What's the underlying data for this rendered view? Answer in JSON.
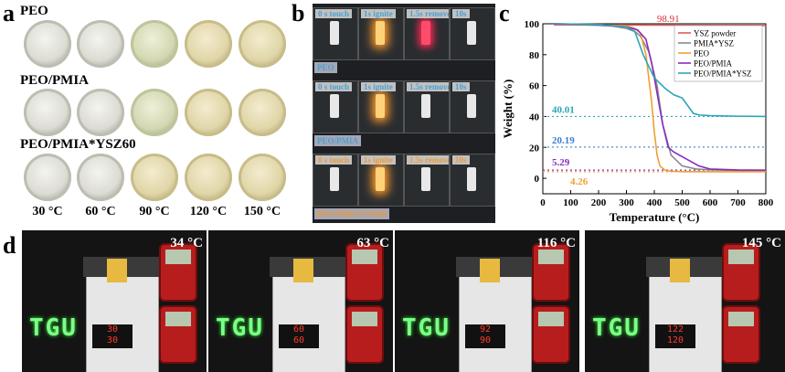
{
  "panel_a": {
    "label": "a",
    "rows": [
      "PEO",
      "PEO/PMIA",
      "PEO/PMIA*YSZ60"
    ],
    "temps": [
      "30 °C",
      "60 °C",
      "90 °C",
      "120 °C",
      "150 °C"
    ]
  },
  "panel_b": {
    "label": "b",
    "stages": [
      "0 s touch",
      "1s ignite",
      "1.5s remove",
      "10s"
    ],
    "samples": [
      "PEO",
      "PEO/PMIA",
      "PEO/PMIA*YSZ60"
    ]
  },
  "panel_c": {
    "label": "c",
    "chart_data": {
      "type": "line",
      "xlabel": "Temperature (°C)",
      "ylabel": "Weight (%)",
      "xlim": [
        0,
        800
      ],
      "ylim": [
        -10,
        100
      ],
      "xticks": [
        0,
        100,
        200,
        300,
        400,
        500,
        600,
        700,
        800
      ],
      "yticks": [
        0,
        20,
        40,
        60,
        80,
        100
      ],
      "legend_position": "top-right",
      "series": [
        {
          "name": "YSZ powder",
          "color": "#e05a5a",
          "x": [
            40,
            800
          ],
          "y": [
            99.3,
            98.91
          ]
        },
        {
          "name": "PMIA*YSZ",
          "color": "#8a8a8a",
          "x": [
            40,
            100,
            200,
            250,
            300,
            330,
            350,
            380,
            410,
            430,
            460,
            500,
            550,
            600,
            700,
            800
          ],
          "y": [
            100,
            99.7,
            99,
            98.5,
            97,
            95,
            92,
            82,
            60,
            35,
            15,
            8,
            6,
            5.5,
            5,
            5
          ]
        },
        {
          "name": "PEO",
          "color": "#f0a030",
          "x": [
            40,
            100,
            200,
            300,
            330,
            350,
            370,
            390,
            400,
            410,
            420,
            440,
            470,
            500,
            600,
            800
          ],
          "y": [
            100,
            99.8,
            99.5,
            98.5,
            97,
            94,
            80,
            50,
            30,
            15,
            8,
            5,
            4.5,
            4.3,
            4.26,
            4.26
          ]
        },
        {
          "name": "PEO/PMIA",
          "color": "#8a2bbf",
          "x": [
            40,
            100,
            200,
            300,
            340,
            370,
            390,
            410,
            430,
            450,
            470,
            520,
            560,
            600,
            700,
            800
          ],
          "y": [
            100,
            99.8,
            99.3,
            98,
            96,
            90,
            75,
            55,
            35,
            20,
            17,
            12,
            8,
            6,
            5.4,
            5.29
          ]
        },
        {
          "name": "PEO/PMIA*YSZ",
          "color": "#2aa6b8",
          "x": [
            40,
            100,
            200,
            300,
            330,
            360,
            400,
            440,
            470,
            500,
            520,
            540,
            560,
            600,
            700,
            800
          ],
          "y": [
            100,
            99.8,
            99.5,
            98,
            95,
            80,
            65,
            58,
            54,
            52,
            47,
            42,
            41,
            40.5,
            40.2,
            40.01
          ]
        }
      ],
      "dotted_levels": [
        {
          "value": 40.01,
          "label": "40.01",
          "color": "#2aa6b8"
        },
        {
          "value": 20.19,
          "label": "20.19",
          "color": "#3a7fd0"
        },
        {
          "value": 5.29,
          "label": "5.29",
          "color": "#8a2bbf"
        },
        {
          "value": 4.26,
          "label": "4.26",
          "color": "#f0a030"
        }
      ],
      "ysz_label": {
        "text": "98.91",
        "color": "#d63030"
      }
    }
  },
  "panel_d": {
    "label": "d",
    "temps": [
      "34 °C",
      "63 °C",
      "116 °C",
      "145 °C"
    ],
    "sign_text": "TGU",
    "displays": [
      [
        "30",
        "30"
      ],
      [
        "60",
        "60"
      ],
      [
        "92",
        "90"
      ],
      [
        "122",
        "120"
      ]
    ]
  }
}
